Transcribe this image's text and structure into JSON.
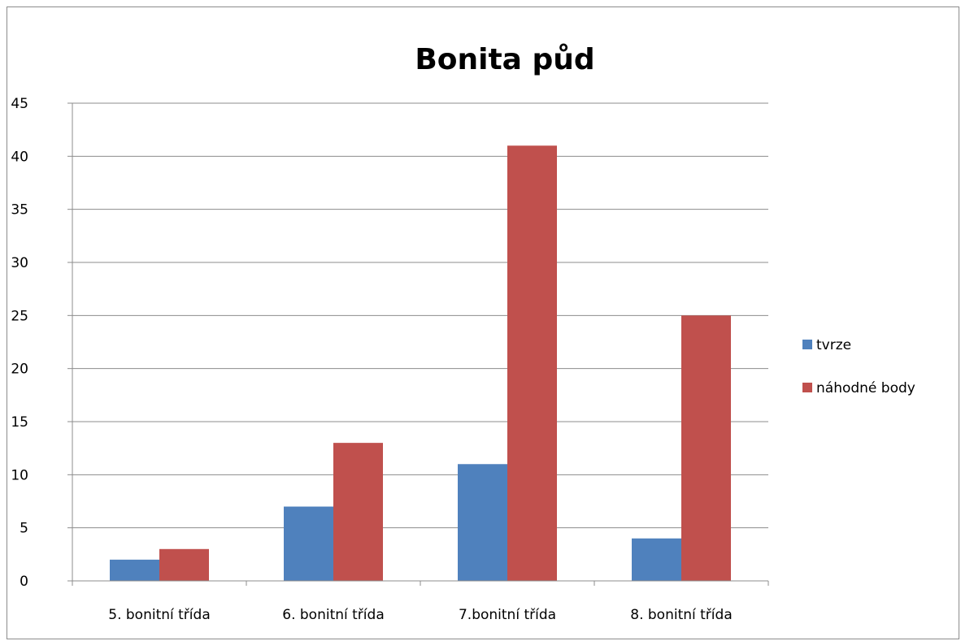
{
  "chart_data": {
    "type": "bar",
    "title": "Bonita půd",
    "xlabel": "",
    "ylabel": "",
    "categories": [
      "5. bonitní třída",
      "6. bonitní třída",
      "7.bonitní třída",
      "8. bonitní třída"
    ],
    "series": [
      {
        "name": "tvrze",
        "color": "#4f81bd",
        "values": [
          2,
          7,
          11,
          4
        ]
      },
      {
        "name": "náhodné body",
        "color": "#c0504d",
        "values": [
          3,
          13,
          41,
          25
        ]
      }
    ],
    "ylim": [
      0,
      45
    ],
    "yticks": [
      0,
      5,
      10,
      15,
      20,
      25,
      30,
      35,
      40,
      45
    ],
    "grid": true,
    "legend": "right"
  }
}
